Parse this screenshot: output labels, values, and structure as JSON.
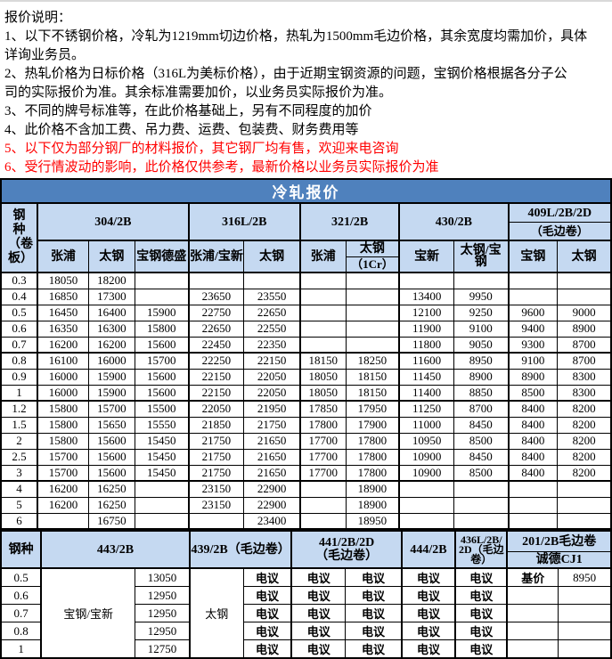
{
  "colors": {
    "title_bar": "#4F81BD",
    "header_fill": "#C5D9F1",
    "warning_red": "#FF0000",
    "border": "#000000"
  },
  "notes": {
    "lines": [
      {
        "text": "报价说明：",
        "red": false
      },
      {
        "text": "1、以下不锈钢价格，冷轧为1219mm切边价格，热轧为1500mm毛边价格，其余宽度均需加价，具体",
        "red": false
      },
      {
        "text": "详询业务员。",
        "red": false
      },
      {
        "text": "2、热轧价格为日标价格（316L为美标价格），由于近期宝钢资源的问题，宝钢价格根据各分子公",
        "red": false
      },
      {
        "text": "司的实际报价为准。其余标准需要加价，以业务员实际报价为准。",
        "red": false
      },
      {
        "text": "3、不同的牌号标准等，在此价格基础上，另有不同程度的加价",
        "red": false
      },
      {
        "text": "4、此价格不含加工费、吊力费、运费、包装费、财务费用等",
        "red": false
      },
      {
        "text": "5、以下仅为部分钢厂的材料报价，其它钢厂均有售，欢迎来电咨询",
        "red": true
      },
      {
        "text": "6、受行情波动的影响，此价格仅供参考，最新价格以业务员实际报价为准",
        "red": true
      }
    ]
  },
  "cold_table": {
    "title": "冷轧报价",
    "corner": "钢种（卷板）",
    "groups": [
      {
        "label": "304/2B"
      },
      {
        "label": "316L/2B"
      },
      {
        "label": "321/2B"
      },
      {
        "label": "430/2B"
      },
      {
        "label": "409L/2B/2D",
        "sub": "（毛边卷）"
      }
    ],
    "firms": [
      "张浦",
      "太钢",
      "宝钢德盛",
      "张浦/宝新",
      "太钢",
      "张浦",
      "太钢",
      "宝新",
      "太钢/宝钢",
      "宝钢",
      "太钢"
    ],
    "firm_sub": "（1Cr）",
    "rows": [
      {
        "t": "0.3",
        "v": [
          "18050",
          "18200",
          "",
          "",
          "",
          "",
          "",
          "",
          "",
          "",
          ""
        ]
      },
      {
        "t": "0.4",
        "v": [
          "16850",
          "17300",
          "",
          "23650",
          "23550",
          "",
          "",
          "13400",
          "9950",
          "",
          ""
        ]
      },
      {
        "t": "0.5",
        "v": [
          "16450",
          "16400",
          "15900",
          "22750",
          "22650",
          "",
          "",
          "12100",
          "9250",
          "9600",
          "9000"
        ]
      },
      {
        "t": "0.6",
        "v": [
          "16350",
          "16300",
          "15800",
          "22650",
          "22550",
          "",
          "",
          "11900",
          "9100",
          "9400",
          "8900"
        ]
      },
      {
        "t": "0.7",
        "v": [
          "16200",
          "16200",
          "15600",
          "22450",
          "22350",
          "",
          "",
          "11800",
          "9050",
          "9300",
          "8700"
        ]
      },
      {
        "t": "0.8",
        "v": [
          "16100",
          "16000",
          "15700",
          "22250",
          "22150",
          "18150",
          "18250",
          "11600",
          "8950",
          "9100",
          "8700"
        ]
      },
      {
        "t": "0.9",
        "v": [
          "16000",
          "15900",
          "15600",
          "22150",
          "22050",
          "18050",
          "18150",
          "11450",
          "8900",
          "8900",
          "8300"
        ]
      },
      {
        "t": "1",
        "v": [
          "16000",
          "15900",
          "15600",
          "22150",
          "22050",
          "18050",
          "18150",
          "11400",
          "8850",
          "8500",
          "8300"
        ]
      },
      {
        "t": "1.2",
        "v": [
          "15800",
          "15700",
          "15500",
          "22050",
          "21950",
          "17850",
          "17950",
          "11250",
          "8700",
          "8400",
          "8200"
        ]
      },
      {
        "t": "1.5",
        "v": [
          "15800",
          "15650",
          "15550",
          "21850",
          "21750",
          "17800",
          "17900",
          "11000",
          "8450",
          "8400",
          "8200"
        ]
      },
      {
        "t": "2",
        "v": [
          "15800",
          "15600",
          "15450",
          "21750",
          "21650",
          "17700",
          "17800",
          "10950",
          "8500",
          "8400",
          "8200"
        ]
      },
      {
        "t": "2.5",
        "v": [
          "15700",
          "15600",
          "15450",
          "21750",
          "21650",
          "17700",
          "17800",
          "10900",
          "8450",
          "8400",
          "8200"
        ]
      },
      {
        "t": "3",
        "v": [
          "15700",
          "15600",
          "15450",
          "21750",
          "21650",
          "17700",
          "17800",
          "10900",
          "8500",
          "8400",
          "8200"
        ]
      },
      {
        "t": "4",
        "v": [
          "16200",
          "16250",
          "",
          "23150",
          "22900",
          "",
          "18900",
          "",
          "",
          "",
          ""
        ]
      },
      {
        "t": "5",
        "v": [
          "16200",
          "16250",
          "",
          "23150",
          "22900",
          "",
          "18900",
          "",
          "",
          "",
          ""
        ]
      },
      {
        "t": "6",
        "v": [
          "",
          "16750",
          "",
          "",
          "23400",
          "",
          "18950",
          "",
          "",
          "",
          ""
        ]
      }
    ]
  },
  "second_table": {
    "corner": "钢种",
    "groups": [
      {
        "label": "443/2B"
      },
      {
        "label": "439/2B（毛边卷）"
      },
      {
        "label": "441/2B/2D\n（毛边卷）"
      },
      {
        "label": "444/2B"
      },
      {
        "label": "436L/2B/2D（毛边卷）"
      },
      {
        "label": "201/2B毛边卷",
        "sub": "诚德CJ1"
      }
    ],
    "mill_443": "宝钢/宝新",
    "mill_439": "太钢",
    "rows": [
      {
        "t": "0.5",
        "price": "13050",
        "v": [
          "电议",
          "电议",
          "电议",
          "电议",
          "电议"
        ],
        "base_label": "基价",
        "base_price": "8950"
      },
      {
        "t": "0.6",
        "price": "12950",
        "v": [
          "电议",
          "电议",
          "电议",
          "电议",
          "电议"
        ],
        "base_label": "",
        "base_price": ""
      },
      {
        "t": "0.7",
        "price": "12950",
        "v": [
          "电议",
          "电议",
          "电议",
          "电议",
          "电议"
        ],
        "base_label": "",
        "base_price": ""
      },
      {
        "t": "0.8",
        "price": "12950",
        "v": [
          "电议",
          "电议",
          "电议",
          "电议",
          "电议"
        ],
        "base_label": "",
        "base_price": ""
      },
      {
        "t": "1",
        "price": "12750",
        "v": [
          "电议",
          "电议",
          "电议",
          "电议",
          "电议"
        ],
        "base_label": "",
        "base_price": ""
      }
    ]
  }
}
